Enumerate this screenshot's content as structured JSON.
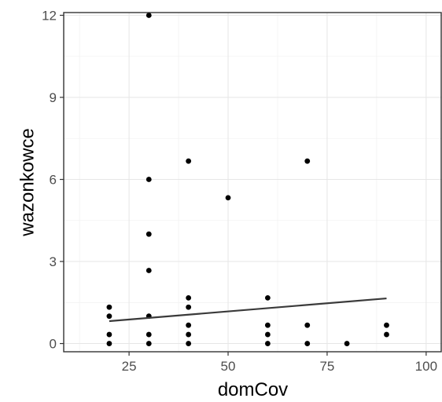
{
  "chart_data": {
    "type": "scatter",
    "xlabel": "domCov",
    "ylabel": "wazonkowce",
    "xlim": [
      8.5,
      104
    ],
    "ylim": [
      -0.3,
      12.1
    ],
    "x_ticks": [
      25,
      50,
      75,
      100
    ],
    "y_ticks": [
      0,
      3,
      6,
      9,
      12
    ],
    "grid": true,
    "legend": "none",
    "points": [
      {
        "x": 20,
        "y": 1.33
      },
      {
        "x": 20,
        "y": 1.0
      },
      {
        "x": 20,
        "y": 0.33
      },
      {
        "x": 20,
        "y": 0.0
      },
      {
        "x": 30,
        "y": 12.0
      },
      {
        "x": 30,
        "y": 6.0
      },
      {
        "x": 30,
        "y": 4.0
      },
      {
        "x": 30,
        "y": 2.67
      },
      {
        "x": 30,
        "y": 1.0
      },
      {
        "x": 30,
        "y": 0.33
      },
      {
        "x": 30,
        "y": 0.0
      },
      {
        "x": 40,
        "y": 6.67
      },
      {
        "x": 40,
        "y": 1.67
      },
      {
        "x": 40,
        "y": 1.33
      },
      {
        "x": 40,
        "y": 0.67
      },
      {
        "x": 40,
        "y": 0.33
      },
      {
        "x": 40,
        "y": 0.0
      },
      {
        "x": 50,
        "y": 5.33
      },
      {
        "x": 60,
        "y": 1.67
      },
      {
        "x": 60,
        "y": 0.67
      },
      {
        "x": 60,
        "y": 0.33
      },
      {
        "x": 60,
        "y": 0.0
      },
      {
        "x": 70,
        "y": 6.67
      },
      {
        "x": 70,
        "y": 0.67
      },
      {
        "x": 70,
        "y": 0.0
      },
      {
        "x": 80,
        "y": 0.0
      },
      {
        "x": 90,
        "y": 0.67
      },
      {
        "x": 90,
        "y": 0.33
      }
    ],
    "trend_line": {
      "x": [
        20,
        90
      ],
      "y": [
        0.82,
        1.65
      ]
    }
  }
}
